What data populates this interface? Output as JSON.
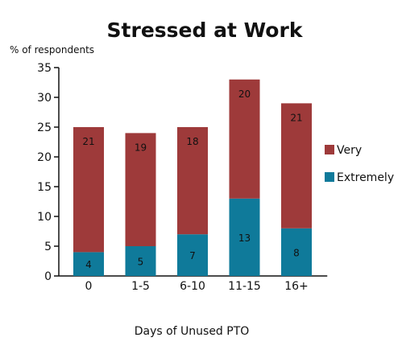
{
  "chart_data": {
    "type": "bar",
    "stacked": true,
    "title": "Stressed at Work",
    "ylabel": "% of respondents",
    "xlabel": "Days of Unused PTO",
    "categories": [
      "0",
      "1-5",
      "6-10",
      "11-15",
      "16+"
    ],
    "ylim": [
      0,
      35
    ],
    "yticks": [
      0,
      5,
      10,
      15,
      20,
      25,
      30,
      35
    ],
    "grid": false,
    "legend": "right",
    "series": [
      {
        "name": "Extremely",
        "values": [
          4,
          5,
          7,
          13,
          8
        ],
        "color": "#0f7a9a"
      },
      {
        "name": "Very",
        "values": [
          21,
          19,
          18,
          20,
          21
        ],
        "color": "#9e3a3a"
      }
    ],
    "axis_color": "#111111"
  }
}
